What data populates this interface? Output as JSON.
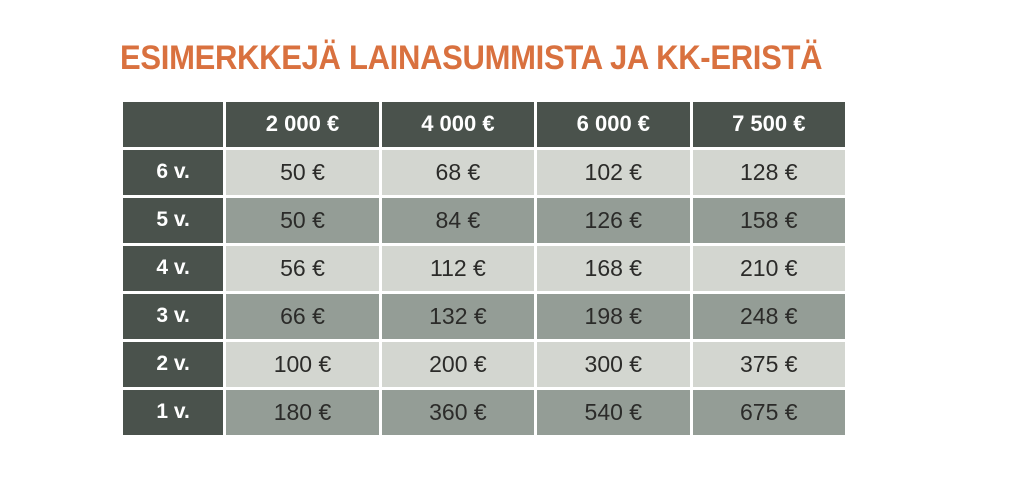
{
  "title": "ESIMERKKEJÄ LAINASUMMISTA JA KK-ERISTÄ",
  "colors": {
    "title_orange": "#d9713f",
    "header_dark": "#4a524c",
    "row_light": "#d3d6d0",
    "row_medium": "#949d96",
    "value_text": "#2b2b29",
    "header_text": "#ffffff",
    "page_background": "#ffffff"
  },
  "chart_data": {
    "type": "table",
    "title": "ESIMERKKEJÄ LAINASUMMISTA JA KK-ERISTÄ",
    "corner_label": "",
    "columns": [
      "2 000 €",
      "4 000 €",
      "6 000 €",
      "7 500 €"
    ],
    "rows": [
      {
        "label": "6 v.",
        "values": [
          "50 €",
          "68 €",
          "102 €",
          "128 €"
        ]
      },
      {
        "label": "5 v.",
        "values": [
          "50 €",
          "84 €",
          "126 €",
          "158 €"
        ]
      },
      {
        "label": "4 v.",
        "values": [
          "56 €",
          "112 €",
          "168 €",
          "210 €"
        ]
      },
      {
        "label": "3 v.",
        "values": [
          "66 €",
          "132 €",
          "198 €",
          "248 €"
        ]
      },
      {
        "label": "2 v.",
        "values": [
          "100 €",
          "200 €",
          "300 €",
          "375 €"
        ]
      },
      {
        "label": "1 v.",
        "values": [
          "180 €",
          "360 €",
          "540 €",
          "675 €"
        ]
      }
    ],
    "layout_hints": {
      "row_shading_order": [
        "light",
        "medium",
        "light",
        "medium",
        "light",
        "medium"
      ],
      "header_style": "dark green-gray with white bold text",
      "cell_gap": "3px white gridlines"
    }
  }
}
